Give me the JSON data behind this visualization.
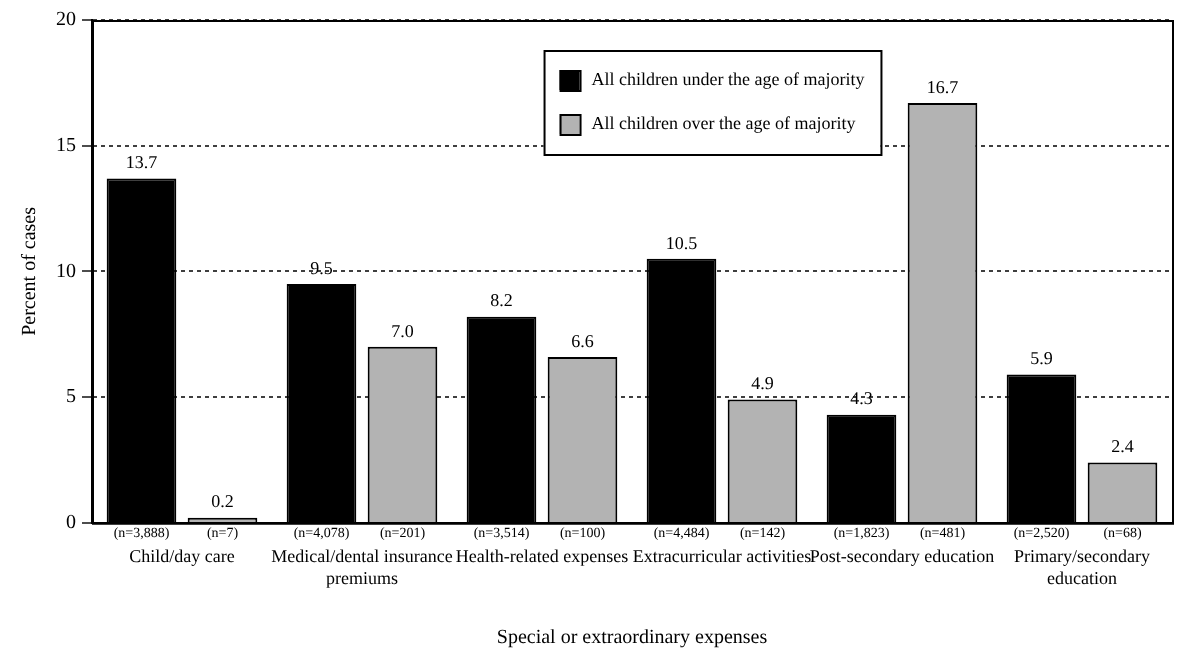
{
  "chart_data": {
    "type": "bar",
    "xlabel": "Special or extraordinary expenses",
    "ylabel": "Percent of cases",
    "categories": [
      "Child/day care",
      "Medical/dental insurance premiums",
      "Health-related expenses",
      "Extracurricular activities",
      "Post-secondary education",
      "Primary/secondary education"
    ],
    "series": [
      {
        "name": "All children under the age of majority",
        "color": "#000000",
        "values": [
          13.7,
          9.5,
          8.2,
          10.5,
          4.3,
          5.9
        ],
        "value_labels": [
          "13.7",
          "9.5",
          "8.2",
          "10.5",
          "4.3",
          "5.9"
        ]
      },
      {
        "name": "All children over the age of majority",
        "color": "#b3b3b3",
        "values": [
          0.2,
          7.0,
          6.6,
          4.9,
          16.7,
          2.4
        ],
        "value_labels": [
          "0.2",
          "7.0",
          "6.6",
          "4.9",
          "16.7",
          "2.4"
        ]
      }
    ],
    "ylim": [
      0,
      20
    ],
    "yticks": [
      0,
      5,
      10,
      15,
      20
    ],
    "grid": "y",
    "legend": "top",
    "annotations": [
      "(n=3,888)",
      "(n=7)",
      "(n=4,078)",
      "(n=201)",
      "(n=3,514)",
      "(n=100)",
      "(n=4,484)",
      "(n=142)",
      "(n=1,823)",
      "(n=481)",
      "(n=2,520)",
      "(n=68)"
    ]
  }
}
